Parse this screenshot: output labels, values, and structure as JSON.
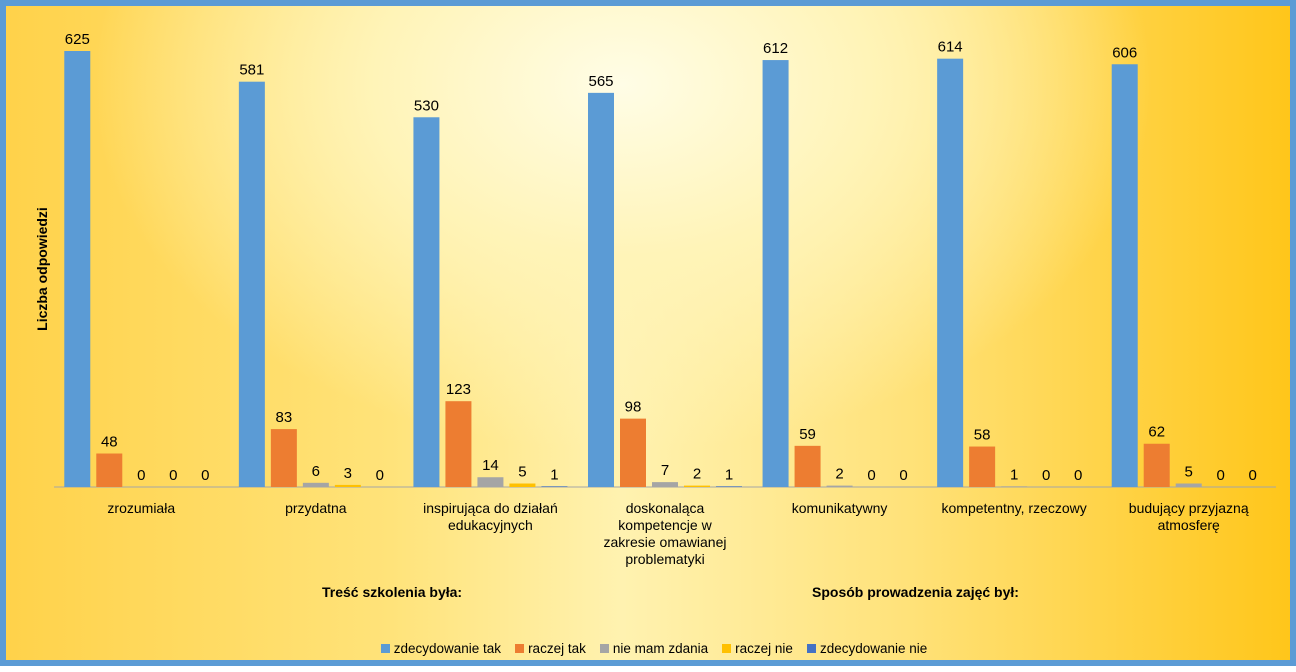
{
  "chart_data": {
    "type": "bar",
    "title": "",
    "ylabel": "Liczba odpowiedzi",
    "xlabel": "",
    "ylim": [
      0,
      650
    ],
    "grid": false,
    "legend_position": "bottom",
    "categories": [
      [
        "zrozumiała"
      ],
      [
        "przydatna"
      ],
      [
        "inspirująca do działań",
        "edukacyjnych"
      ],
      [
        "doskonaląca",
        "kompetencje w",
        "zakresie omawianej",
        "problematyki"
      ],
      [
        "komunikatywny"
      ],
      [
        "kompetentny, rzeczowy"
      ],
      [
        "budujący przyjazną",
        "atmosferę"
      ]
    ],
    "groups": [
      {
        "label": "Treść szkolenia była:",
        "categories": [
          0,
          1,
          2,
          3
        ]
      },
      {
        "label": "Sposób prowadzenia zajęć był:",
        "categories": [
          4,
          5,
          6
        ]
      }
    ],
    "series": [
      {
        "name": "zdecydowanie tak",
        "color": "#5b9bd5",
        "values": [
          625,
          581,
          530,
          565,
          612,
          614,
          606
        ]
      },
      {
        "name": "raczej tak",
        "color": "#ed7d31",
        "values": [
          48,
          83,
          123,
          98,
          59,
          58,
          62
        ]
      },
      {
        "name": "nie mam zdania",
        "color": "#a5a5a5",
        "values": [
          0,
          6,
          14,
          7,
          2,
          1,
          5
        ]
      },
      {
        "name": "raczej nie",
        "color": "#ffc000",
        "values": [
          0,
          3,
          5,
          2,
          0,
          0,
          0
        ]
      },
      {
        "name": "zdecydowanie nie",
        "color": "#4472c4",
        "values": [
          0,
          0,
          1,
          1,
          0,
          0,
          0
        ]
      }
    ]
  }
}
